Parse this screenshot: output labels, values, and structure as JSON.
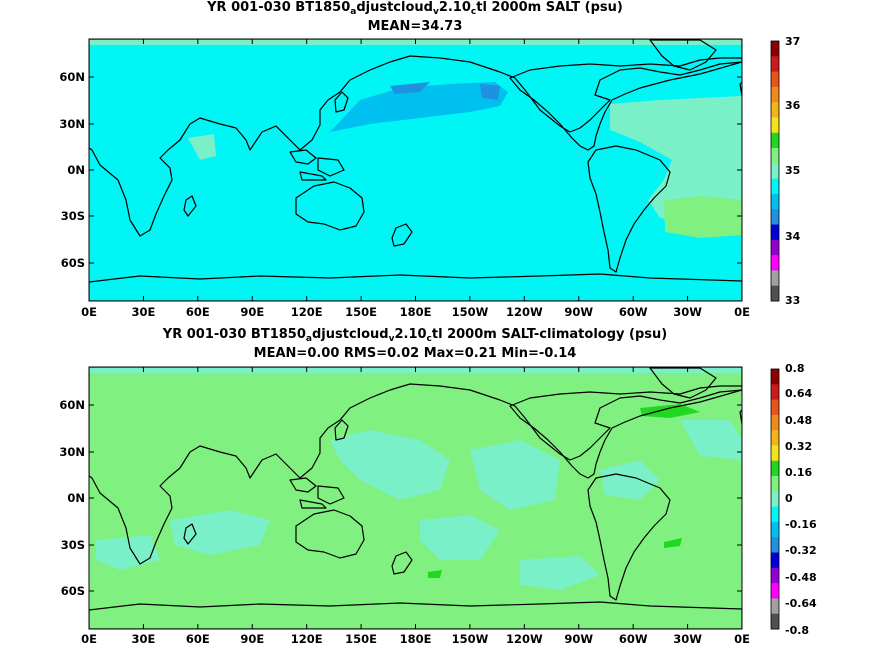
{
  "panels": [
    {
      "title_pre": "YR 001-030 BT1850",
      "title_sub1": "a",
      "title_mid": "djustcloud",
      "title_sub2": "v",
      "title_mid2": "2.10",
      "title_sub3": "c",
      "title_post": "tl 2000m SALT (psu)",
      "stats": "MEAN=34.73",
      "colorbar": {
        "ticks": [
          "37",
          "36",
          "35",
          "34",
          "33"
        ],
        "colors": [
          "#8b0000",
          "#cc1a1a",
          "#e8551a",
          "#f08a1a",
          "#f5b31a",
          "#f5e21a",
          "#1fd81f",
          "#80f080",
          "#7af0c8",
          "#00f5f5",
          "#00c0f0",
          "#2090e0",
          "#0000d8",
          "#9400d3",
          "#ff00ff",
          "#a0a0a0",
          "#505050"
        ]
      },
      "ylabels": [
        "60N",
        "30N",
        "0N",
        "30S",
        "60S"
      ],
      "xlabels": [
        "0E",
        "30E",
        "60E",
        "90E",
        "120E",
        "150E",
        "180E",
        "150W",
        "120W",
        "90W",
        "60W",
        "30W",
        "0E"
      ]
    },
    {
      "title_pre": "YR 001-030 BT1850",
      "title_sub1": "a",
      "title_mid": "djustcloud",
      "title_sub2": "v",
      "title_mid2": "2.10",
      "title_sub3": "c",
      "title_post": "tl 2000m SALT-climatology (psu)",
      "stats": "MEAN=0.00   RMS=0.02   Max=0.21   Min=-0.14",
      "colorbar": {
        "ticks": [
          "0.8",
          "0.64",
          "0.48",
          "0.32",
          "0.16",
          "0",
          "-0.16",
          "-0.32",
          "-0.48",
          "-0.64",
          "-0.8"
        ],
        "colors": [
          "#8b0000",
          "#cc1a1a",
          "#e8551a",
          "#f08a1a",
          "#f5b31a",
          "#f5e21a",
          "#1fd81f",
          "#80f080",
          "#7af0c8",
          "#00f5f5",
          "#00c0f0",
          "#2090e0",
          "#0000d8",
          "#9400d3",
          "#ff00ff",
          "#a0a0a0",
          "#505050"
        ]
      },
      "ylabels": [
        "60N",
        "30N",
        "0N",
        "30S",
        "60S"
      ],
      "xlabels": [
        "0E",
        "30E",
        "60E",
        "90E",
        "120E",
        "150E",
        "180E",
        "150W",
        "120W",
        "90W",
        "60W",
        "30W",
        "0E"
      ]
    }
  ]
}
